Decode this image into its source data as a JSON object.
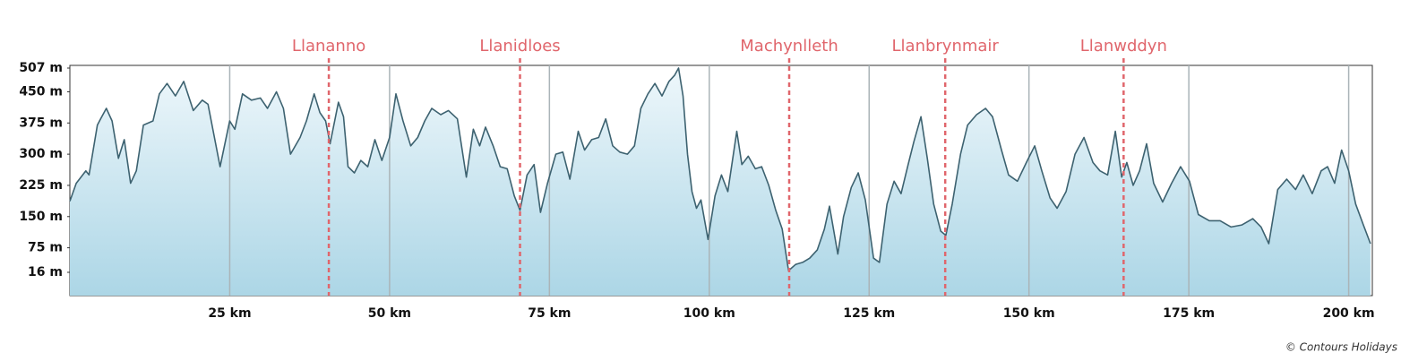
{
  "chart_data": {
    "type": "area",
    "credit": "© Contours Holidays",
    "color": "#3d6270",
    "fill": "#cfe8f2",
    "marker_color": "#e0666c",
    "grid": "x",
    "xlim": [
      0,
      203.7
    ],
    "ylim": [
      -40,
      507
    ],
    "xticks": [
      {
        "value": 25,
        "label": "25 km"
      },
      {
        "value": 50,
        "label": "50 km"
      },
      {
        "value": 75,
        "label": "75 km"
      },
      {
        "value": 100,
        "label": "100 km"
      },
      {
        "value": 125,
        "label": "125 km"
      },
      {
        "value": 150,
        "label": "150 km"
      },
      {
        "value": 175,
        "label": "175 km"
      },
      {
        "value": 200,
        "label": "200 km"
      }
    ],
    "yticks": [
      {
        "value": 16,
        "label": "16 m"
      },
      {
        "value": 75,
        "label": "75 m"
      },
      {
        "value": 150,
        "label": "150 m"
      },
      {
        "value": 225,
        "label": "225 m"
      },
      {
        "value": 300,
        "label": "300 m"
      },
      {
        "value": 375,
        "label": "375 m"
      },
      {
        "value": 450,
        "label": "450 m"
      },
      {
        "value": 507,
        "label": "507 m"
      }
    ],
    "markers": [
      {
        "label": "Llananno",
        "x": 40.5
      },
      {
        "label": "Llanidloes",
        "x": 70.4
      },
      {
        "label": "Machynlleth",
        "x": 112.5
      },
      {
        "label": "Llanbrynmair",
        "x": 136.9
      },
      {
        "label": "Llanwddyn",
        "x": 164.8
      }
    ],
    "x": [
      0,
      1,
      2.5,
      3,
      4.3,
      4.8,
      5.7,
      6.6,
      7.6,
      8.5,
      9.5,
      10.4,
      11.5,
      13,
      14,
      15.2,
      16.5,
      17.8,
      19.3,
      20.7,
      21.6,
      23.5,
      25,
      25.8,
      27,
      28.4,
      29.8,
      30.9,
      32.3,
      33.4,
      34.5,
      36,
      37,
      38.2,
      39.1,
      40,
      40.7,
      42,
      42.8,
      43.5,
      44.5,
      45.5,
      46.6,
      47.7,
      48.8,
      50,
      51,
      52.1,
      53.3,
      54.4,
      55.5,
      56.6,
      58,
      59.2,
      60.6,
      62,
      63.1,
      64.1,
      65,
      66.2,
      67.3,
      68.4,
      69.5,
      70.4,
      71.5,
      72.6,
      73.6,
      74.7,
      76,
      77.1,
      78.2,
      79.5,
      80.5,
      81.6,
      82.7,
      83.8,
      84.9,
      86,
      87.2,
      88.3,
      89.3,
      90.4,
      91.5,
      92.6,
      93.7,
      94.6,
      95.2,
      95.9,
      96.6,
      97.3,
      98,
      98.7,
      99.8,
      100.9,
      101.9,
      102.9,
      104.3,
      105.1,
      106.1,
      107.2,
      108.2,
      109.3,
      110.4,
      111.4,
      112.4,
      113.5,
      114.6,
      115.7,
      116.9,
      118,
      118.8,
      120.1,
      121,
      122.2,
      123.3,
      124.4,
      125.7,
      126.6,
      127.8,
      128.9,
      130,
      131.1,
      132,
      133.1,
      134.1,
      135.1,
      136.2,
      137,
      138,
      139.3,
      140.4,
      141.8,
      143.2,
      144.3,
      145.7,
      146.8,
      148.2,
      149.6,
      150.9,
      152,
      153.3,
      154.4,
      155.8,
      157.2,
      158.6,
      160,
      161.1,
      162.3,
      163.5,
      164.5,
      165.3,
      166.3,
      167.3,
      168.4,
      169.5,
      170.9,
      172.3,
      173.7,
      175.1,
      176.5,
      178.2,
      179.9,
      181.6,
      183.3,
      185,
      186.3,
      187.5,
      188.9,
      190.3,
      191.7,
      192.9,
      194.3,
      195.7,
      196.7,
      197.8,
      198.9,
      200,
      201.1,
      202.3,
      203.4
    ],
    "values": [
      187,
      230,
      260,
      250,
      370,
      385,
      410,
      380,
      290,
      335,
      230,
      260,
      370,
      380,
      445,
      470,
      440,
      475,
      405,
      430,
      420,
      270,
      380,
      360,
      445,
      430,
      435,
      410,
      450,
      410,
      300,
      340,
      380,
      445,
      400,
      380,
      325,
      425,
      390,
      270,
      255,
      285,
      270,
      335,
      285,
      340,
      445,
      380,
      320,
      340,
      380,
      410,
      395,
      405,
      385,
      245,
      360,
      320,
      365,
      320,
      270,
      265,
      200,
      165,
      250,
      275,
      160,
      230,
      300,
      305,
      240,
      355,
      310,
      335,
      340,
      385,
      320,
      305,
      300,
      320,
      410,
      445,
      470,
      440,
      475,
      490,
      507,
      440,
      300,
      210,
      170,
      190,
      95,
      200,
      250,
      210,
      355,
      275,
      295,
      265,
      270,
      225,
      165,
      120,
      20,
      35,
      40,
      50,
      70,
      120,
      175,
      60,
      150,
      220,
      255,
      190,
      50,
      40,
      180,
      235,
      205,
      275,
      330,
      390,
      290,
      180,
      115,
      105,
      180,
      300,
      370,
      395,
      410,
      390,
      310,
      250,
      235,
      280,
      320,
      260,
      195,
      170,
      210,
      300,
      340,
      280,
      260,
      250,
      355,
      245,
      280,
      225,
      260,
      325,
      230,
      185,
      230,
      270,
      235,
      155,
      140,
      140,
      125,
      130,
      145,
      125,
      85,
      215,
      240,
      215,
      250,
      205,
      260,
      270,
      230,
      310,
      260,
      180,
      130,
      85
    ]
  }
}
